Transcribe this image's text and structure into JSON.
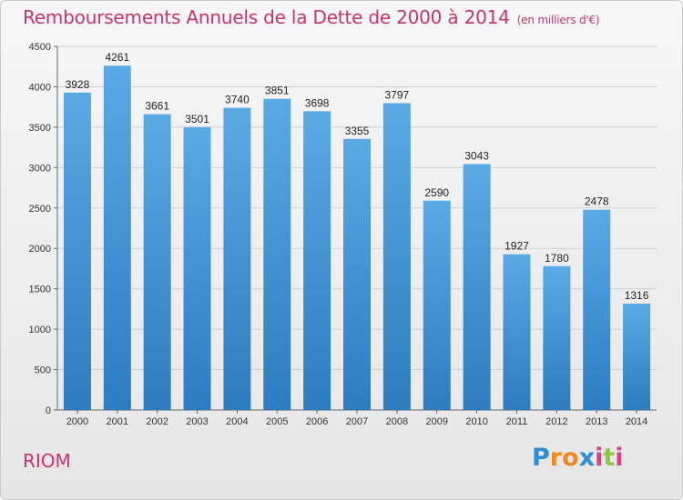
{
  "chart_data": {
    "type": "bar",
    "title": "Remboursements Annuels de la Dette de 2000 à 2014",
    "subtitle": "(en milliers d'€)",
    "categories": [
      "2000",
      "2001",
      "2002",
      "2003",
      "2004",
      "2005",
      "2006",
      "2007",
      "2008",
      "2009",
      "2010",
      "2011",
      "2012",
      "2013",
      "2014"
    ],
    "values": [
      3928,
      4261,
      3661,
      3501,
      3740,
      3851,
      3698,
      3355,
      3797,
      2590,
      3043,
      1927,
      1780,
      2478,
      1316
    ],
    "ylim": [
      0,
      4500
    ],
    "yticks": [
      0,
      500,
      1000,
      1500,
      2000,
      2500,
      3000,
      3500,
      4000,
      4500
    ],
    "grid": true,
    "bar_color_top": "#5aaae6",
    "bar_color_bottom": "#2c7cc0"
  },
  "footer": {
    "place": "RIOM",
    "logo_letters": [
      {
        "ch": "P",
        "color": "#2a8fd8"
      },
      {
        "ch": "r",
        "color": "#f08a1e"
      },
      {
        "ch": "o",
        "color": "#f08a1e"
      },
      {
        "ch": "x",
        "color": "#2a8fd8"
      },
      {
        "ch": "i",
        "color": "#e03a8e"
      },
      {
        "ch": "t",
        "color": "#8cc63f"
      },
      {
        "ch": "i",
        "color": "#e03a8e"
      }
    ]
  }
}
